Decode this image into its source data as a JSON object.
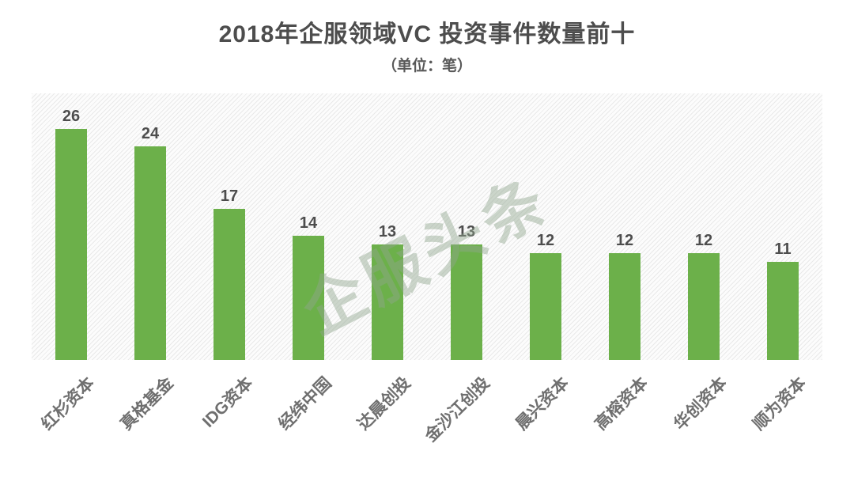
{
  "page": {
    "background": "#ffffff"
  },
  "header": {
    "title": "2018年企服领域VC 投资事件数量前十",
    "subtitle": "（单位：笔）"
  },
  "watermark": {
    "text": "企服头条",
    "color": "#91a78f"
  },
  "colors": {
    "bar": "#6cb04a",
    "title_text": "#4d4d4d",
    "value_label": "#4d4d4d",
    "category_label": "#6f6f6f",
    "plot_hatch_line": "#e9e9e9",
    "plot_background": "#fcfcfc"
  },
  "chart_data": {
    "type": "bar",
    "title": "2018年企服领域VC 投资事件数量前十",
    "subtitle": "（单位：笔）",
    "categories": [
      "红杉资本",
      "真格基金",
      "IDG资本",
      "经纬中国",
      "达晨创投",
      "金沙江创投",
      "晨兴资本",
      "高榕资本",
      "华创资本",
      "顺为资本"
    ],
    "values": [
      26,
      24,
      17,
      14,
      13,
      13,
      12,
      12,
      12,
      11
    ],
    "xlabel": "",
    "ylabel": "",
    "ylim": [
      0,
      30
    ],
    "grid": false,
    "legend": false,
    "value_labels_shown": true,
    "bar_color": "#6cb04a",
    "category_label_rotation_deg": -45
  }
}
